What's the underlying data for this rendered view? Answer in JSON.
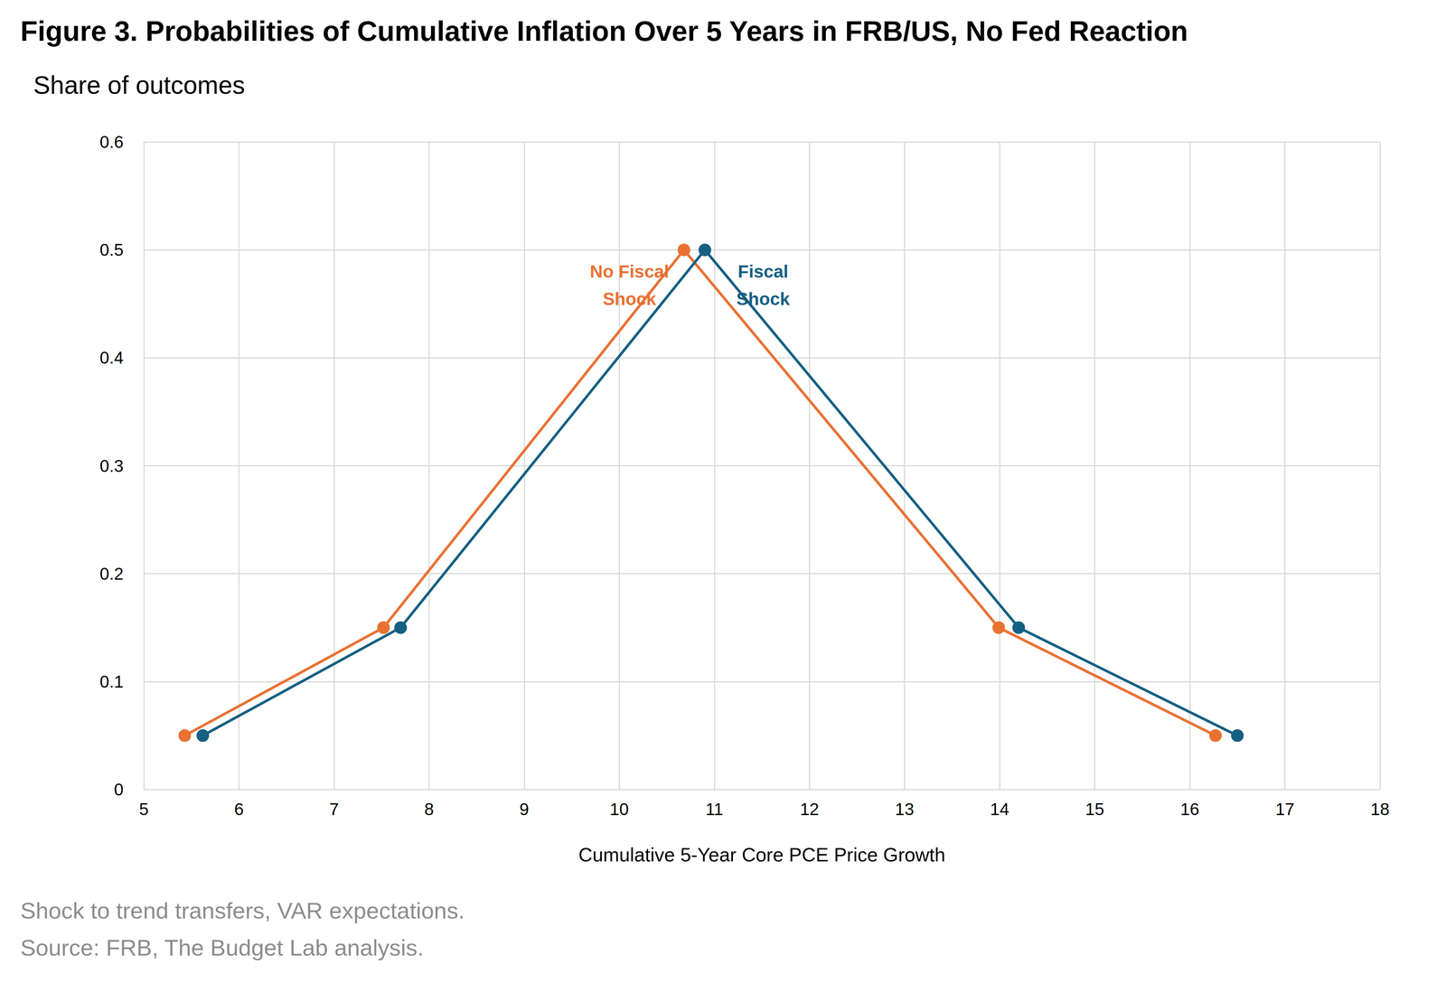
{
  "chart_data": {
    "type": "line",
    "title": "Figure 3. Probabilities of Cumulative Inflation Over 5 Years in FRB/US, No Fed Reaction",
    "subtitle": "Share of outcomes",
    "x_label": "Cumulative 5-Year Core PCE Price Growth",
    "notes": [
      "Shock to trend transfers, VAR expectations.",
      "Source: FRB, The Budget Lab analysis."
    ],
    "series": [
      {
        "name": "No Fiscal Shock",
        "color": "#E97132",
        "x": [
          5.43,
          7.52,
          10.68,
          13.99,
          16.27
        ],
        "values": [
          0.05,
          0.15,
          0.5,
          0.15,
          0.05
        ]
      },
      {
        "name": "Fiscal Shock",
        "color": "#156082",
        "x": [
          5.62,
          7.7,
          10.9,
          14.2,
          16.5
        ],
        "values": [
          0.05,
          0.15,
          0.5,
          0.15,
          0.05
        ]
      }
    ],
    "xlim": [
      5,
      18
    ],
    "xticks": [
      5,
      6,
      7,
      8,
      9,
      10,
      11,
      12,
      13,
      14,
      15,
      16,
      17,
      18
    ],
    "ylim": [
      0,
      0.6
    ],
    "yticks": [
      0,
      0.1,
      0.2,
      0.3,
      0.4,
      0.5,
      0.6
    ],
    "grid": true,
    "marker": "circle"
  }
}
